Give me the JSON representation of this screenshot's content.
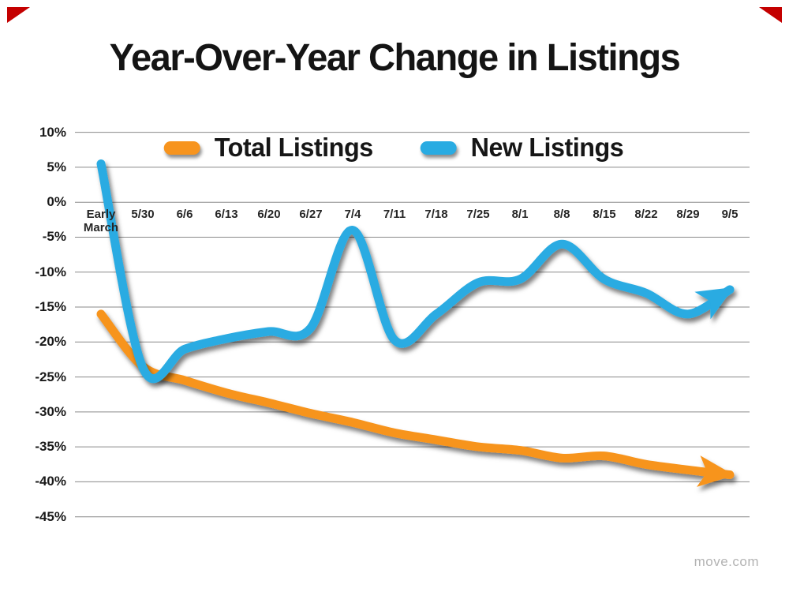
{
  "watermark": "move.com",
  "accent_color": "#c40000",
  "chart_data": {
    "type": "line",
    "title": "Year-Over-Year Change in Listings",
    "categories": [
      "Early March",
      "5/30",
      "6/6",
      "6/13",
      "6/20",
      "6/27",
      "7/4",
      "7/11",
      "7/18",
      "7/25",
      "8/1",
      "8/8",
      "8/15",
      "8/22",
      "8/29",
      "9/5"
    ],
    "series": [
      {
        "name": "Total Listings",
        "color": "#F7941E",
        "values": [
          -16,
          -23.5,
          -25.5,
          -27.3,
          -28.7,
          -30.2,
          -31.5,
          -33,
          -34,
          -35,
          -35.5,
          -36.6,
          -36.3,
          -37.5,
          -38.3,
          -39
        ]
      },
      {
        "name": "New Listings",
        "color": "#29ABE2",
        "values": [
          5.5,
          -23.7,
          -21,
          -19.5,
          -18.5,
          -18,
          -4,
          -19.7,
          -16,
          -11.5,
          -11,
          -6,
          -11,
          -13,
          -16,
          -12.5
        ]
      }
    ],
    "xlabel": "",
    "ylabel": "",
    "ylim": [
      -45,
      10
    ],
    "y_ticks": [
      "10%",
      "5%",
      "0%",
      "-5%",
      "-10%",
      "-15%",
      "-20%",
      "-25%",
      "-30%",
      "-35%",
      "-40%",
      "-45%"
    ],
    "y_tick_values": [
      10,
      5,
      0,
      -5,
      -10,
      -15,
      -20,
      -25,
      -30,
      -35,
      -40,
      -45
    ],
    "grid": "horizontal",
    "gridline_color": "#8a8a8a",
    "legend_position": "top-center",
    "line_end": "arrow"
  }
}
